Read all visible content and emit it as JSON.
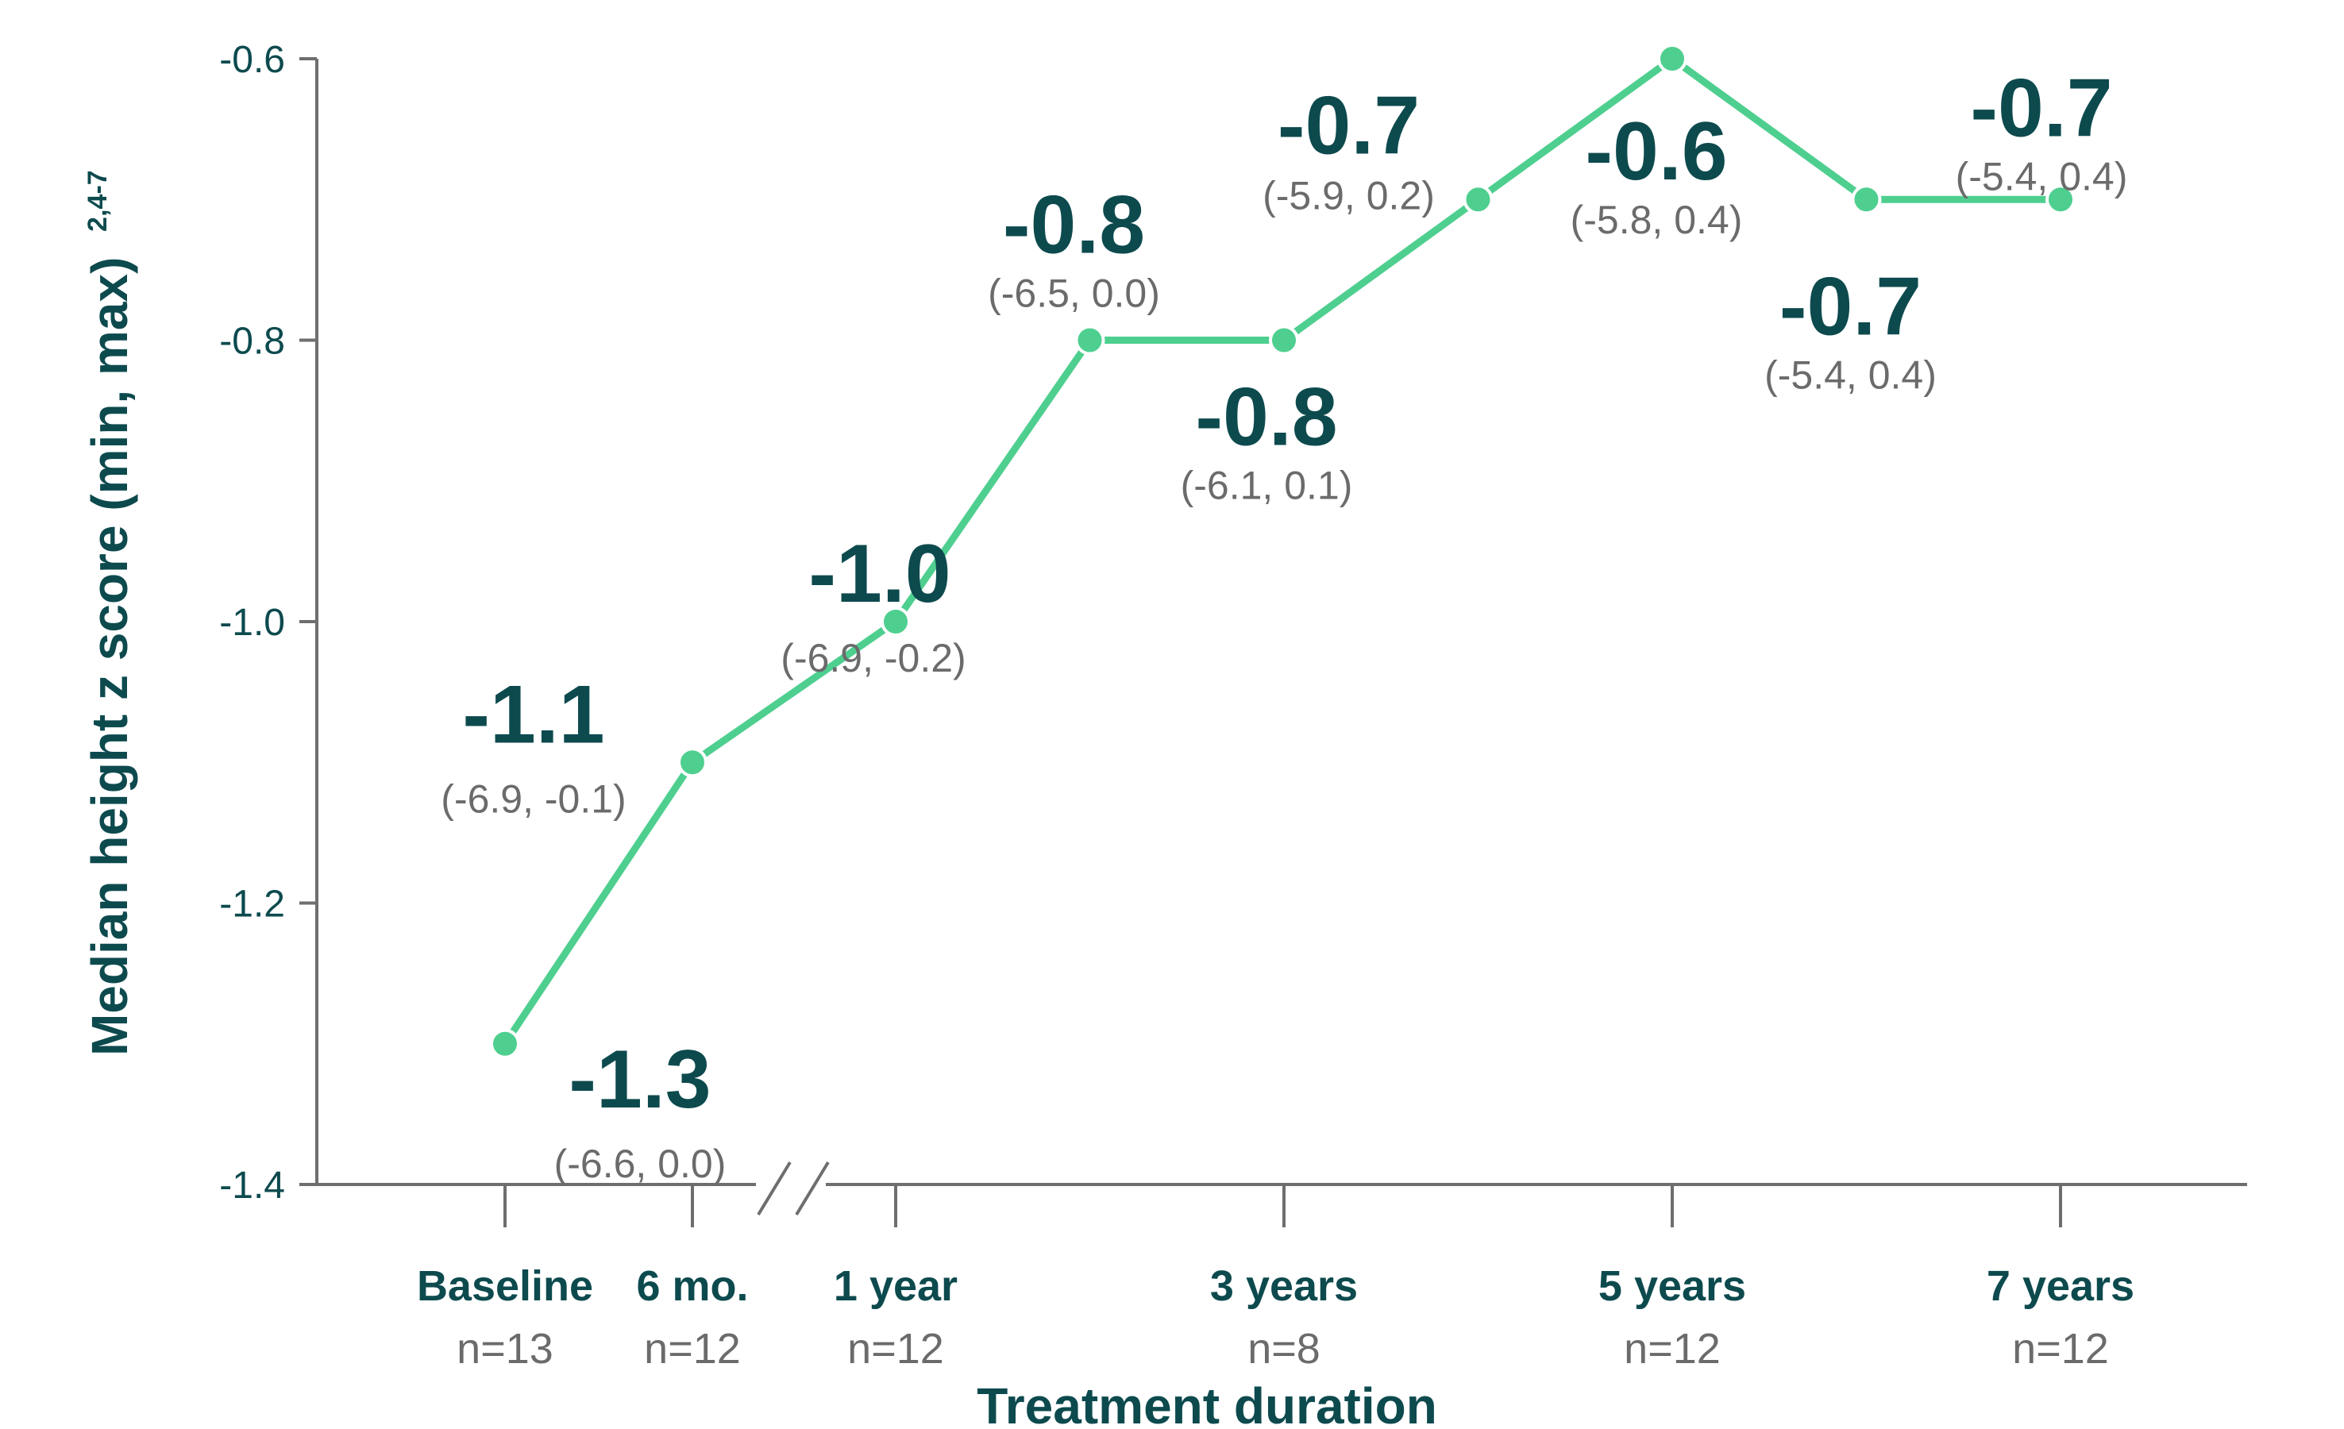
{
  "chart_data": {
    "type": "line",
    "xlabel": "Treatment duration",
    "ylabel": "Median height z score (min, max)",
    "ylabel_superscript": "2,4-7",
    "ylim": [
      -1.4,
      -0.6
    ],
    "yticks": [
      "-0.6",
      "-0.8",
      "-1.0",
      "-1.2",
      "-1.4"
    ],
    "ytick_values": [
      -0.6,
      -0.8,
      -1.0,
      -1.2,
      -1.4
    ],
    "categories": [
      {
        "label": "Baseline",
        "n": "n=13"
      },
      {
        "label": "6 mo.",
        "n": "n=12"
      },
      {
        "label": "1 year",
        "n": "n=12"
      },
      {
        "label": "3 years",
        "n": "n=8"
      },
      {
        "label": "5 years",
        "n": "n=12"
      },
      {
        "label": "7 years",
        "n": "n=12"
      }
    ],
    "axis_break": "between 6 mo. and 1 year",
    "series_color": "#4ecf8f",
    "points": [
      {
        "time_years": 0,
        "value": -1.3,
        "label": "-1.3",
        "range": "(-6.6, 0.0)"
      },
      {
        "time_years": 0.5,
        "value": -1.1,
        "label": "-1.1",
        "range": "(-6.9, -0.1)"
      },
      {
        "time_years": 1,
        "value": -1.0,
        "label": "-1.0",
        "range": "(-6.9, -0.2)"
      },
      {
        "time_years": 2,
        "value": -0.8,
        "label": "-0.8",
        "range": "(-6.5, 0.0)"
      },
      {
        "time_years": 3,
        "value": -0.8,
        "label": "-0.8",
        "range": "(-6.1, 0.1)"
      },
      {
        "time_years": 4,
        "value": -0.7,
        "label": "-0.7",
        "range": "(-5.9, 0.2)"
      },
      {
        "time_years": 5,
        "value": -0.6,
        "label": "-0.6",
        "range": "(-5.8, 0.4)"
      },
      {
        "time_years": 6,
        "value": -0.7,
        "label": "-0.7",
        "range": "(-5.4, 0.4)"
      },
      {
        "time_years": 7,
        "value": -0.7,
        "label": "-0.7",
        "range": "(-5.4, 0.4)"
      }
    ]
  }
}
